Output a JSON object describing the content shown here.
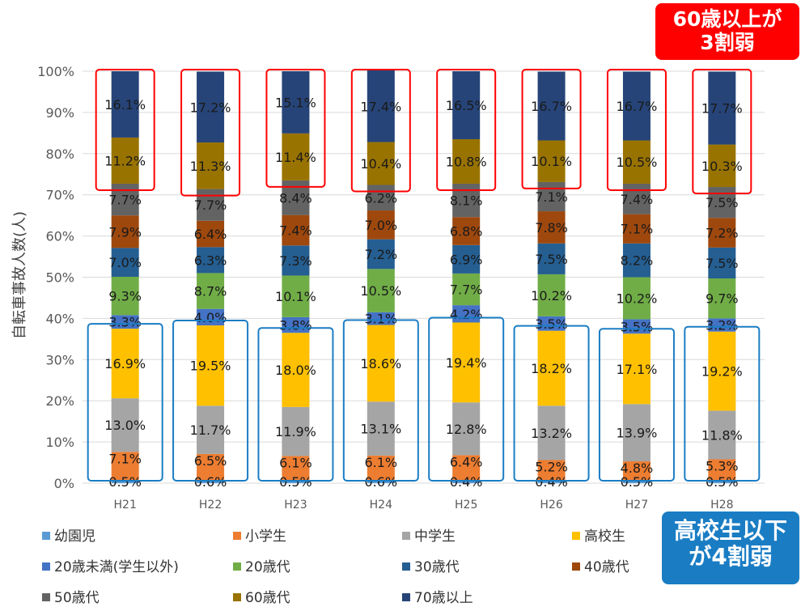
{
  "chart_data": {
    "type": "bar",
    "stacked": true,
    "normalized": true,
    "ylabel": "自転車事故人数(人)",
    "ylim": [
      0,
      100
    ],
    "yticks": [
      "0%",
      "10%",
      "20%",
      "30%",
      "40%",
      "50%",
      "60%",
      "70%",
      "80%",
      "90%",
      "100%"
    ],
    "categories": [
      "H21",
      "H22",
      "H23",
      "H24",
      "H25",
      "H26",
      "H27",
      "H28"
    ],
    "legend_position": "bottom",
    "series": [
      {
        "name": "幼園児",
        "color": "#5b9bd5",
        "values": [
          0.5,
          0.6,
          0.5,
          0.6,
          0.4,
          0.4,
          0.5,
          0.5
        ]
      },
      {
        "name": "小学生",
        "color": "#ed7d31",
        "values": [
          7.1,
          6.5,
          6.1,
          6.1,
          6.4,
          5.2,
          4.8,
          5.3
        ]
      },
      {
        "name": "中学生",
        "color": "#a5a5a5",
        "values": [
          13.0,
          11.7,
          11.9,
          13.1,
          12.8,
          13.2,
          13.9,
          11.8
        ]
      },
      {
        "name": "高校生",
        "color": "#ffc000",
        "values": [
          16.9,
          19.5,
          18.0,
          18.6,
          19.4,
          18.2,
          17.1,
          19.2
        ]
      },
      {
        "name": "20歳未満(学生以外)",
        "color": "#4472c4",
        "values": [
          3.3,
          4.0,
          3.8,
          3.1,
          4.2,
          3.5,
          3.5,
          3.2
        ]
      },
      {
        "name": "20歳代",
        "color": "#70ad47",
        "values": [
          9.3,
          8.7,
          10.1,
          10.5,
          7.7,
          10.2,
          10.2,
          9.7
        ]
      },
      {
        "name": "30歳代",
        "color": "#255e91",
        "values": [
          7.0,
          6.3,
          7.3,
          7.2,
          6.9,
          7.5,
          8.2,
          7.5
        ]
      },
      {
        "name": "40歳代",
        "color": "#9e480e",
        "values": [
          7.9,
          6.4,
          7.4,
          7.0,
          6.8,
          7.8,
          7.1,
          7.2
        ]
      },
      {
        "name": "50歳代",
        "color": "#636363",
        "values": [
          7.7,
          7.7,
          8.4,
          6.2,
          8.1,
          7.1,
          7.4,
          7.5
        ]
      },
      {
        "name": "60歳代",
        "color": "#997300",
        "values": [
          11.2,
          11.3,
          11.4,
          10.4,
          10.8,
          10.1,
          10.5,
          10.3
        ]
      },
      {
        "name": "70歳以上",
        "color": "#264478",
        "values": [
          16.1,
          17.2,
          15.1,
          17.4,
          16.5,
          16.7,
          16.7,
          17.7
        ]
      }
    ],
    "annotations": {
      "top_callout": [
        "60歳以上が",
        "3割弱"
      ],
      "bottom_callout": [
        "高校生以下",
        "が4割弱"
      ],
      "top_box_color": "#ff0000",
      "bottom_box_color": "#1a7dc4"
    }
  }
}
